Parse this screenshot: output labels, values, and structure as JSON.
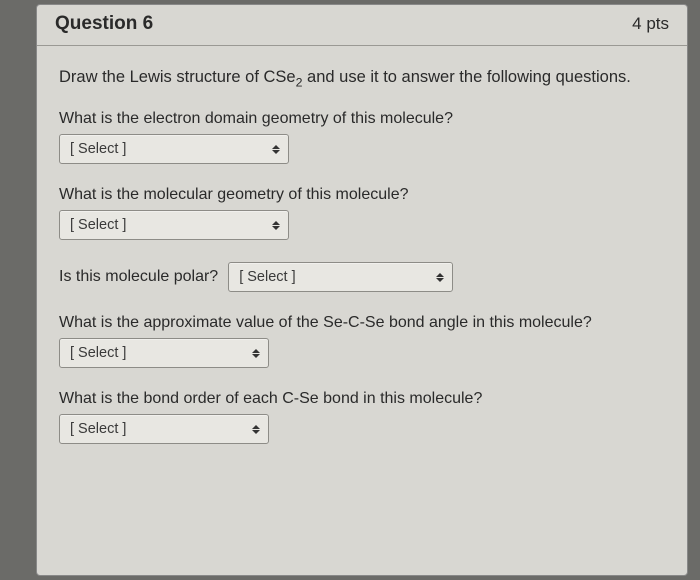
{
  "header": {
    "title": "Question 6",
    "points": "4 pts"
  },
  "intro_html": "Draw the Lewis structure of CSe<sub>2</sub> and use it to answer the following questions.",
  "select_placeholder": "[ Select ]",
  "questions": {
    "q1": "What is the electron domain geometry of this molecule?",
    "q2": "What is the molecular geometry of this molecule?",
    "q3": "Is this molecule polar?",
    "q4": "What is the approximate value of the Se-C-Se bond angle in this molecule?",
    "q5": "What is the bond order of each C-Se bond in this molecule?"
  },
  "colors": {
    "page_bg": "#6b6b68",
    "card_bg": "#d8d7d2",
    "select_bg": "#e8e7e2",
    "text": "#2a2a2a",
    "border": "#8d8c87"
  }
}
